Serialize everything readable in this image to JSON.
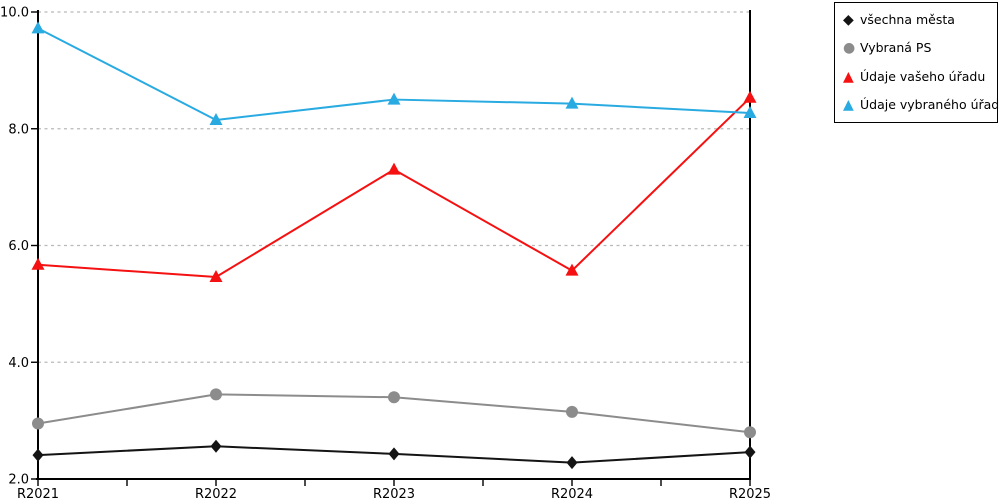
{
  "chart_data": {
    "type": "line",
    "title": "",
    "xlabel": "",
    "ylabel": "",
    "categories": [
      "R2021",
      "R2022",
      "R2023",
      "R2024",
      "R2025"
    ],
    "series": [
      {
        "name": "všechna města",
        "marker": "diamond",
        "color": "#141414",
        "values": [
          2.41,
          2.56,
          2.43,
          2.28,
          2.46
        ]
      },
      {
        "name": "Vybraná PS",
        "marker": "circle",
        "color": "#8c8c8c",
        "values": [
          2.95,
          3.45,
          3.4,
          3.15,
          2.8
        ]
      },
      {
        "name": "Údaje vašeho úřadu",
        "marker": "triangle",
        "color": "#f51111",
        "values": [
          5.67,
          5.46,
          7.3,
          5.57,
          8.53
        ]
      },
      {
        "name": "Údaje vybraného úřadu",
        "marker": "triangle",
        "color": "#29abe2",
        "values": [
          9.72,
          8.15,
          8.5,
          8.43,
          8.27
        ]
      }
    ],
    "y_ticks": [
      2.0,
      4.0,
      6.0,
      8.0,
      10.0
    ],
    "y_ticklabels": [
      "2.0",
      "4.0",
      "6.0",
      "8.0",
      "10.0"
    ],
    "ylim": [
      2.0,
      10.0
    ],
    "grid": "dotted-horizontal",
    "gridline_color": "#b9b9b9",
    "axis_color": "#000000",
    "legend_position": "top-right"
  },
  "icons": {
    "diamond": "◆",
    "circle": "●",
    "triangle": "▲"
  }
}
